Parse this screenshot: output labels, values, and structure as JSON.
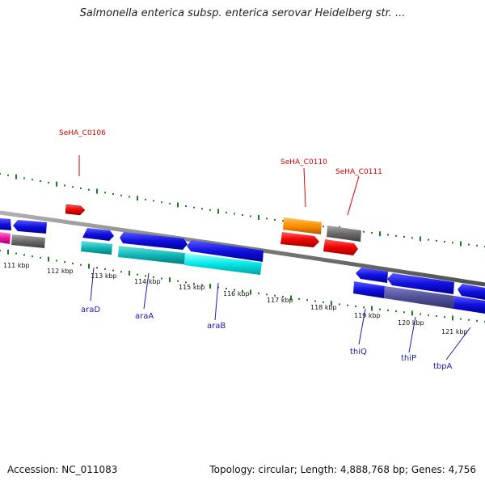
{
  "title": "Salmonella enterica subsp. enterica serovar Heidelberg str. ...",
  "footer": {
    "accession": "Accession: NC_011083",
    "summary": "Topology: circular; Length: 4,888,768 bp; Genes: 4,756"
  },
  "colors": {
    "backbone": "#7a7a7a",
    "tick": "#1f7a1f",
    "tag_label": "#d40000",
    "gene_label": "#1a1aa8"
  },
  "map": {
    "kbp_ticks": [
      "111 kbp",
      "112 kbp",
      "113 kbp",
      "114 kbp",
      "115 kbp",
      "116 kbp",
      "117 kbp",
      "118 kbp",
      "119 kbp",
      "120 kbp",
      "121 kbp"
    ],
    "locus_tags": [
      "SeHA_C0106",
      "SeHA_C0110",
      "SeHA_C0111"
    ],
    "gene_names": [
      "araD",
      "araA",
      "araB",
      "thiQ",
      "thiP",
      "tbpA"
    ],
    "feature_colors": [
      "blue",
      "red",
      "orange",
      "gray",
      "cyan",
      "teal",
      "magenta",
      "slate"
    ]
  }
}
